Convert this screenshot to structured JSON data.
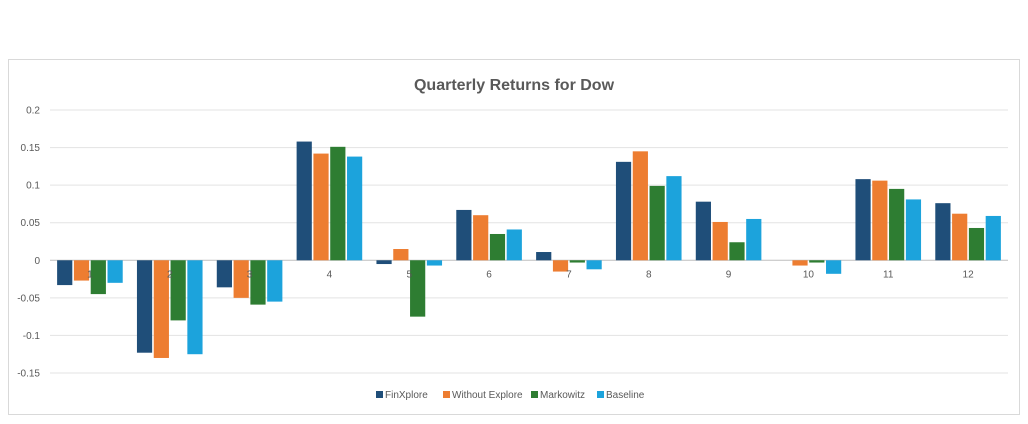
{
  "chart_data": {
    "type": "bar",
    "title": "Quarterly Returns for Dow",
    "xlabel": "",
    "ylabel": "",
    "categories": [
      "1",
      "2",
      "3",
      "4",
      "5",
      "6",
      "7",
      "8",
      "9",
      "10",
      "11",
      "12"
    ],
    "ylim": [
      -0.15,
      0.2
    ],
    "yticks": [
      "0.2",
      "0.15",
      "0.1",
      "0.05",
      "0",
      "-0.05",
      "-0.1",
      "-0.15"
    ],
    "ytick_values": [
      0.2,
      0.15,
      0.1,
      0.05,
      0,
      -0.05,
      -0.1,
      -0.15
    ],
    "grid": true,
    "legend_position": "bottom",
    "series": [
      {
        "name": "FinXplore",
        "color": "#1f4e79",
        "values": [
          -0.033,
          -0.123,
          -0.036,
          0.158,
          -0.005,
          0.067,
          0.011,
          0.131,
          0.078,
          0.0,
          0.108,
          0.076
        ]
      },
      {
        "name": "Without Explore",
        "color": "#ed7d31",
        "values": [
          -0.027,
          -0.13,
          -0.05,
          0.142,
          0.015,
          0.06,
          -0.015,
          0.145,
          0.051,
          -0.007,
          0.106,
          0.062
        ]
      },
      {
        "name": "Markowitz",
        "color": "#2e7d32",
        "values": [
          -0.045,
          -0.08,
          -0.059,
          0.151,
          -0.075,
          0.035,
          -0.003,
          0.099,
          0.024,
          -0.003,
          0.095,
          0.043
        ]
      },
      {
        "name": "Baseline",
        "color": "#1ca3dc",
        "values": [
          -0.03,
          -0.125,
          -0.055,
          0.138,
          -0.007,
          0.041,
          -0.012,
          0.112,
          0.055,
          -0.018,
          0.081,
          0.059
        ]
      }
    ]
  }
}
